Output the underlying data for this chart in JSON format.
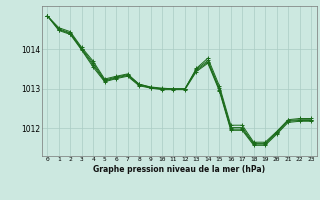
{
  "background_color": "#cce8e0",
  "grid_color": "#aaccC4",
  "line_color": "#1a6b1a",
  "marker_color": "#1a6b1a",
  "title": "Graphe pression niveau de la mer (hPa)",
  "xlim": [
    -0.5,
    23.5
  ],
  "ylim": [
    1011.3,
    1015.1
  ],
  "yticks": [
    1012,
    1013,
    1014
  ],
  "xticks": [
    0,
    1,
    2,
    3,
    4,
    5,
    6,
    7,
    8,
    9,
    10,
    11,
    12,
    13,
    14,
    15,
    16,
    17,
    18,
    19,
    20,
    21,
    22,
    23
  ],
  "series": [
    [
      1014.85,
      1014.55,
      1014.45,
      1014.05,
      1013.7,
      1013.25,
      1013.32,
      1013.38,
      1013.12,
      1013.05,
      1013.02,
      1013.0,
      1013.0,
      1013.52,
      1013.78,
      1013.08,
      1012.08,
      1012.08,
      1011.65,
      1011.65,
      1011.92,
      1012.22,
      1012.25,
      1012.25
    ],
    [
      1014.85,
      1014.52,
      1014.42,
      1014.02,
      1013.65,
      1013.22,
      1013.3,
      1013.36,
      1013.12,
      1013.04,
      1013.0,
      1013.0,
      1013.0,
      1013.5,
      1013.72,
      1013.02,
      1012.02,
      1012.02,
      1011.62,
      1011.62,
      1011.9,
      1012.2,
      1012.22,
      1012.22
    ],
    [
      1014.85,
      1014.5,
      1014.4,
      1014.0,
      1013.6,
      1013.2,
      1013.28,
      1013.34,
      1013.1,
      1013.03,
      1013.0,
      1013.0,
      1013.0,
      1013.47,
      1013.68,
      1012.98,
      1011.98,
      1011.98,
      1011.6,
      1011.6,
      1011.88,
      1012.18,
      1012.2,
      1012.2
    ],
    [
      1014.85,
      1014.48,
      1014.38,
      1013.98,
      1013.55,
      1013.18,
      1013.26,
      1013.32,
      1013.08,
      1013.02,
      1012.98,
      1012.98,
      1012.98,
      1013.44,
      1013.65,
      1012.95,
      1011.95,
      1011.95,
      1011.57,
      1011.57,
      1011.85,
      1012.15,
      1012.18,
      1012.18
    ]
  ]
}
